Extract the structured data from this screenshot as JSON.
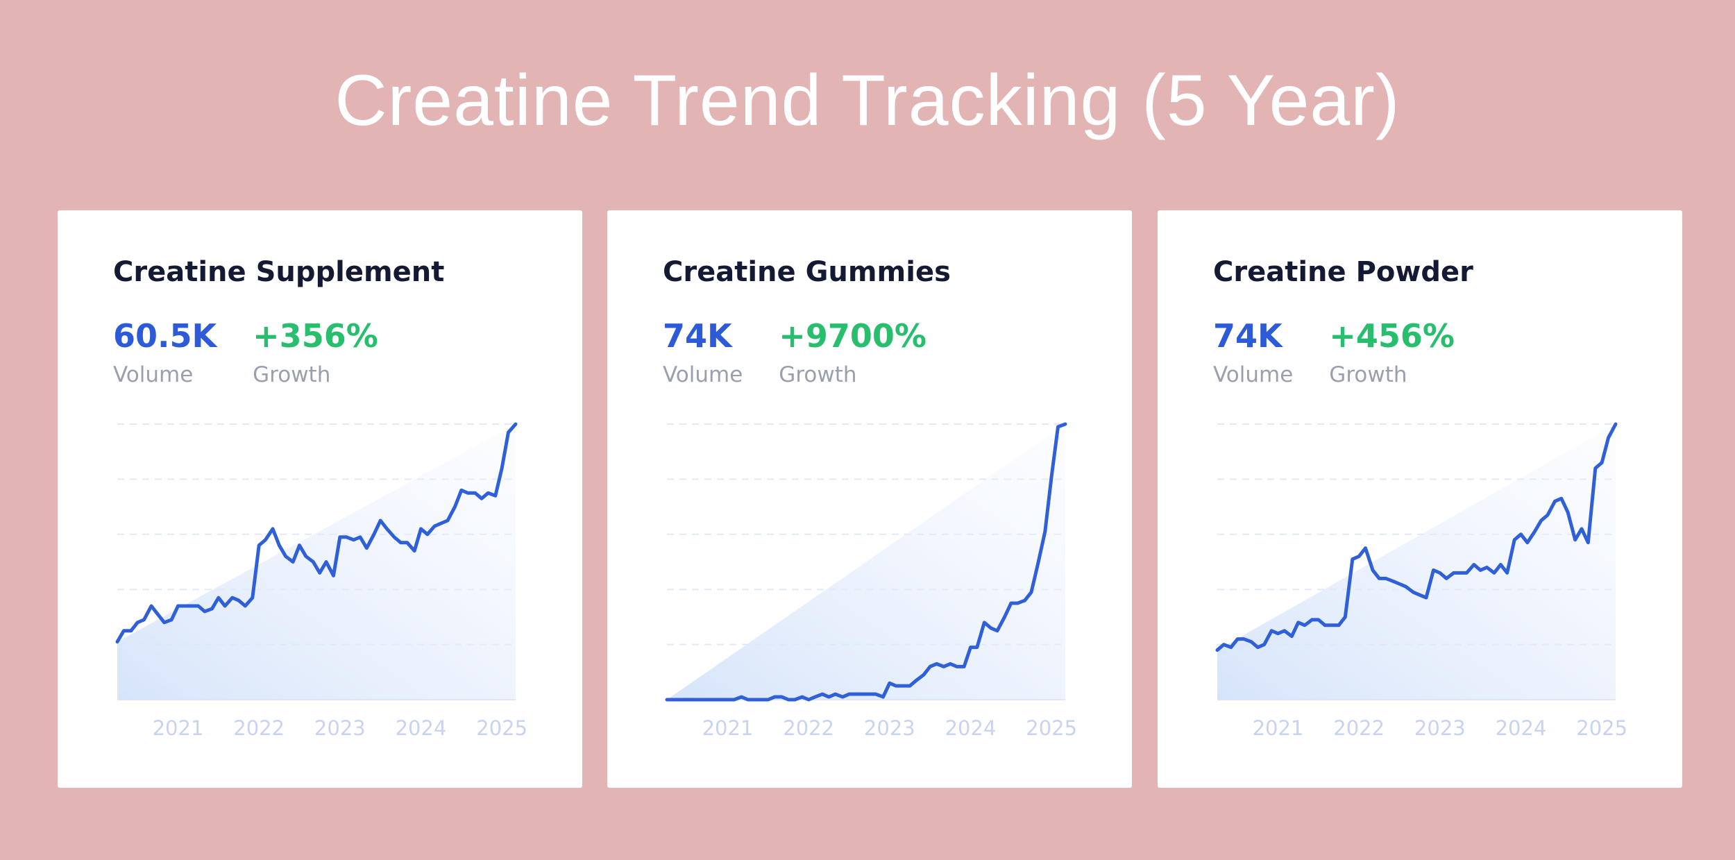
{
  "title": "Creatine Trend Tracking (5 Year)",
  "chart_data": [
    {
      "type": "line",
      "title": "Creatine Supplement",
      "volume": "60.5K",
      "volume_label": "Volume",
      "growth": "+356%",
      "growth_label": "Growth",
      "volume_color": "#2d5bd8",
      "growth_color": "#27be6e",
      "x": [
        2020.25,
        2020.33,
        2020.42,
        2020.5,
        2020.58,
        2020.67,
        2020.75,
        2020.83,
        2020.92,
        2021,
        2021.08,
        2021.17,
        2021.25,
        2021.33,
        2021.42,
        2021.5,
        2021.58,
        2021.67,
        2021.75,
        2021.83,
        2021.92,
        2022,
        2022.08,
        2022.17,
        2022.25,
        2022.33,
        2022.42,
        2022.5,
        2022.58,
        2022.67,
        2022.75,
        2022.83,
        2022.92,
        2023,
        2023.08,
        2023.17,
        2023.25,
        2023.33,
        2023.42,
        2023.5,
        2023.58,
        2023.67,
        2023.75,
        2023.83,
        2023.92,
        2024,
        2024.08,
        2024.17,
        2024.25,
        2024.33,
        2024.42,
        2024.5,
        2024.58,
        2024.67,
        2024.75,
        2024.83,
        2024.92,
        2025,
        2025.08,
        2025.17
      ],
      "series": [
        {
          "color": "#3060d8",
          "values": [
            21,
            25,
            25,
            28,
            29,
            34,
            31,
            28,
            29,
            34,
            34,
            34,
            34,
            32,
            33,
            37,
            34,
            37,
            36,
            34,
            37,
            56,
            58,
            62,
            56,
            52,
            50,
            56,
            52,
            50,
            46,
            50,
            45,
            59,
            59,
            58,
            59,
            55,
            60,
            65,
            62,
            59,
            57,
            57,
            54,
            62,
            60,
            63,
            64,
            65,
            70,
            76,
            75,
            75,
            73,
            75,
            74,
            84,
            97,
            100
          ]
        }
      ],
      "xlim": [
        2020.25,
        2025.17
      ],
      "xticks": [
        2021,
        2022,
        2023,
        2024,
        2025
      ],
      "ylim": [
        0,
        100
      ],
      "yticks": [
        0,
        20,
        40,
        60,
        80,
        100
      ],
      "grid": true
    },
    {
      "type": "line",
      "title": "Creatine Gummies",
      "volume": "74K",
      "volume_label": "Volume",
      "growth": "+9700%",
      "growth_label": "Growth",
      "volume_color": "#2d5bd8",
      "growth_color": "#27be6e",
      "x": [
        2020.25,
        2020.33,
        2020.42,
        2020.5,
        2020.58,
        2020.67,
        2020.75,
        2020.83,
        2020.92,
        2021,
        2021.08,
        2021.17,
        2021.25,
        2021.33,
        2021.42,
        2021.5,
        2021.58,
        2021.67,
        2021.75,
        2021.83,
        2021.92,
        2022,
        2022.08,
        2022.17,
        2022.25,
        2022.33,
        2022.42,
        2022.5,
        2022.58,
        2022.67,
        2022.75,
        2022.83,
        2022.92,
        2023,
        2023.08,
        2023.17,
        2023.25,
        2023.33,
        2023.42,
        2023.5,
        2023.58,
        2023.67,
        2023.75,
        2023.83,
        2023.92,
        2024,
        2024.08,
        2024.17,
        2024.25,
        2024.33,
        2024.42,
        2024.5,
        2024.58,
        2024.67,
        2024.75,
        2024.83,
        2024.92,
        2025,
        2025.08,
        2025.17
      ],
      "series": [
        {
          "color": "#3060d8",
          "values": [
            0,
            0,
            0,
            0,
            0,
            0,
            0,
            0,
            0,
            0,
            0,
            1,
            0,
            0,
            0,
            0,
            1,
            1,
            0,
            0,
            1,
            0,
            1,
            2,
            1,
            2,
            1,
            2,
            2,
            2,
            2,
            2,
            1,
            6,
            5,
            5,
            5,
            7,
            9,
            12,
            13,
            12,
            13,
            12,
            12,
            19,
            19,
            28,
            26,
            25,
            30,
            35,
            35,
            36,
            39,
            49,
            61,
            81,
            99,
            100
          ]
        }
      ],
      "xlim": [
        2020.25,
        2025.17
      ],
      "xticks": [
        2021,
        2022,
        2023,
        2024,
        2025
      ],
      "ylim": [
        0,
        100
      ],
      "yticks": [
        0,
        20,
        40,
        60,
        80,
        100
      ],
      "grid": true
    },
    {
      "type": "line",
      "title": "Creatine Powder",
      "volume": "74K",
      "volume_label": "Volume",
      "growth": "+456%",
      "growth_label": "Growth",
      "volume_color": "#2d5bd8",
      "growth_color": "#27be6e",
      "x": [
        2020.25,
        2020.33,
        2020.42,
        2020.5,
        2020.58,
        2020.67,
        2020.75,
        2020.83,
        2020.92,
        2021,
        2021.08,
        2021.17,
        2021.25,
        2021.33,
        2021.42,
        2021.5,
        2021.58,
        2021.67,
        2021.75,
        2021.83,
        2021.92,
        2022,
        2022.08,
        2022.17,
        2022.25,
        2022.33,
        2022.42,
        2022.5,
        2022.58,
        2022.67,
        2022.75,
        2022.83,
        2022.92,
        2023,
        2023.08,
        2023.17,
        2023.25,
        2023.33,
        2023.42,
        2023.5,
        2023.58,
        2023.67,
        2023.75,
        2023.83,
        2023.92,
        2024,
        2024.08,
        2024.17,
        2024.25,
        2024.33,
        2024.42,
        2024.5,
        2024.58,
        2024.67,
        2024.75,
        2024.83,
        2024.92,
        2025,
        2025.08,
        2025.17
      ],
      "series": [
        {
          "color": "#3060d8",
          "values": [
            18,
            20,
            19,
            22,
            22,
            21,
            19,
            20,
            25,
            24,
            25,
            23,
            28,
            27,
            29,
            29,
            27,
            27,
            27,
            30,
            51,
            52,
            55,
            47,
            44,
            44,
            43,
            42,
            41,
            39,
            38,
            37,
            47,
            46,
            44,
            46,
            46,
            46,
            49,
            47,
            48,
            46,
            49,
            46,
            58,
            60,
            57,
            61,
            65,
            67,
            72,
            73,
            68,
            58,
            62,
            57,
            84,
            86,
            95,
            100
          ]
        }
      ],
      "xlim": [
        2020.25,
        2025.17
      ],
      "xticks": [
        2021,
        2022,
        2023,
        2024,
        2025
      ],
      "ylim": [
        0,
        100
      ],
      "yticks": [
        0,
        20,
        40,
        60,
        80,
        100
      ],
      "grid": true
    }
  ]
}
